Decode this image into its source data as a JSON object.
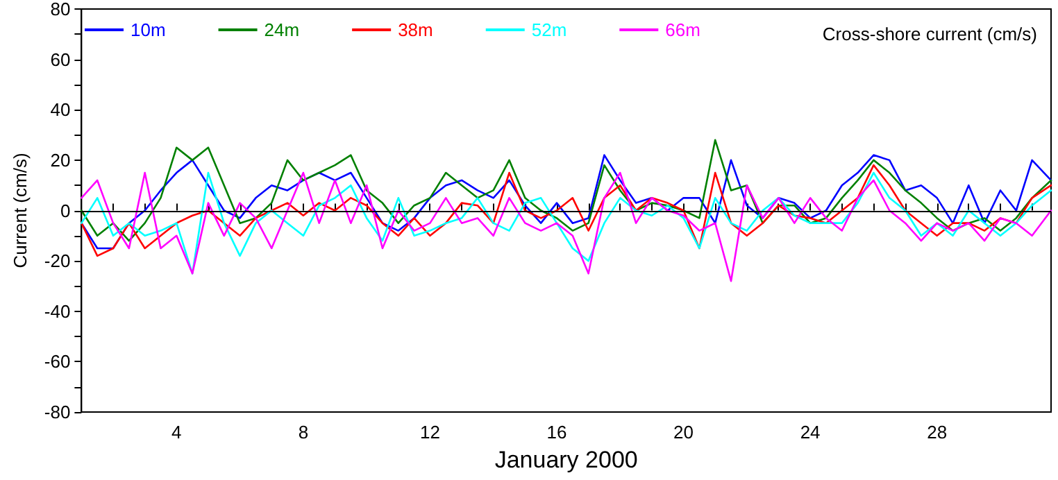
{
  "chart_data": {
    "type": "line",
    "title": "Cross-shore current (cm/s)",
    "xlabel": "January 2000",
    "ylabel": "Current (cm/s)",
    "x": [
      1,
      1.5,
      2,
      2.5,
      3,
      3.5,
      4,
      4.5,
      5,
      5.5,
      6,
      6.5,
      7,
      7.5,
      8,
      8.5,
      9,
      9.5,
      10,
      10.5,
      11,
      11.5,
      12,
      12.5,
      13,
      13.5,
      14,
      14.5,
      15,
      15.5,
      16,
      16.5,
      17,
      17.5,
      18,
      18.5,
      19,
      19.5,
      20,
      20.5,
      21,
      21.5,
      22,
      22.5,
      23,
      23.5,
      24,
      24.5,
      25,
      25.5,
      26,
      26.5,
      27,
      27.5,
      28,
      28.5,
      29,
      29.5,
      30,
      30.5,
      31,
      31.6
    ],
    "series": [
      {
        "name": "10m",
        "color": "#0000ff",
        "values": [
          -5,
          -15,
          -15,
          -5,
          0,
          8,
          15,
          20,
          10,
          0,
          -3,
          5,
          10,
          8,
          12,
          15,
          12,
          15,
          5,
          -5,
          -8,
          -3,
          5,
          10,
          12,
          8,
          5,
          12,
          2,
          -5,
          3,
          -5,
          -3,
          22,
          12,
          3,
          5,
          0,
          5,
          5,
          -5,
          20,
          2,
          -3,
          5,
          3,
          -3,
          0,
          10,
          15,
          22,
          20,
          8,
          10,
          5,
          -5,
          10,
          -5,
          8,
          0,
          20,
          12
        ]
      },
      {
        "name": "24m",
        "color": "#008000",
        "values": [
          0,
          -10,
          -5,
          -12,
          -5,
          5,
          25,
          20,
          25,
          10,
          -5,
          -3,
          3,
          20,
          12,
          15,
          18,
          22,
          8,
          3,
          -5,
          2,
          5,
          15,
          10,
          5,
          8,
          20,
          5,
          0,
          -3,
          -8,
          -5,
          18,
          8,
          0,
          3,
          2,
          0,
          -3,
          28,
          8,
          10,
          -5,
          2,
          2,
          -5,
          -3,
          5,
          12,
          20,
          15,
          8,
          3,
          -3,
          -8,
          -5,
          -3,
          -8,
          -3,
          5,
          12
        ]
      },
      {
        "name": "38m",
        "color": "#ff0000",
        "values": [
          -5,
          -18,
          -15,
          -5,
          -15,
          -10,
          -5,
          -2,
          0,
          -5,
          -10,
          -3,
          0,
          3,
          -2,
          3,
          0,
          5,
          2,
          -5,
          -10,
          -3,
          -10,
          -5,
          3,
          2,
          -5,
          15,
          0,
          -3,
          0,
          5,
          -8,
          5,
          10,
          0,
          5,
          3,
          0,
          -15,
          15,
          -5,
          -10,
          -5,
          2,
          -2,
          -3,
          -5,
          0,
          5,
          18,
          10,
          0,
          -5,
          -10,
          -5,
          -5,
          -8,
          -3,
          -5,
          5,
          10
        ]
      },
      {
        "name": "52m",
        "color": "#00ffff",
        "values": [
          -5,
          5,
          -10,
          -5,
          -10,
          -8,
          -5,
          -25,
          15,
          -5,
          -18,
          -5,
          0,
          -5,
          -10,
          2,
          5,
          10,
          -3,
          -12,
          5,
          -10,
          -8,
          -5,
          -3,
          5,
          -5,
          -8,
          3,
          5,
          -5,
          -15,
          -20,
          -5,
          5,
          0,
          -2,
          2,
          -3,
          -15,
          5,
          -5,
          -8,
          0,
          5,
          -2,
          -5,
          -5,
          -5,
          3,
          15,
          5,
          0,
          -10,
          -5,
          -10,
          0,
          -5,
          -10,
          -5,
          2,
          8
        ]
      },
      {
        "name": "66m",
        "color": "#ff00ff",
        "values": [
          5,
          12,
          -5,
          -15,
          15,
          -15,
          -10,
          -25,
          3,
          -10,
          3,
          -3,
          -15,
          0,
          15,
          -5,
          12,
          -5,
          10,
          -15,
          0,
          -8,
          -5,
          5,
          -5,
          -3,
          -10,
          5,
          -5,
          -8,
          -5,
          -10,
          -25,
          5,
          15,
          -5,
          5,
          0,
          -2,
          -8,
          -5,
          -28,
          10,
          -3,
          5,
          -5,
          5,
          -3,
          -8,
          5,
          12,
          0,
          -5,
          -12,
          -5,
          -8,
          -5,
          -12,
          -3,
          -5,
          -10,
          0
        ]
      }
    ],
    "xlim": [
      1,
      31.6
    ],
    "xticks": [
      {
        "value": 2,
        "label": null
      },
      {
        "value": 3,
        "label": null
      },
      4,
      {
        "value": 5,
        "label": null
      },
      {
        "value": 6,
        "label": null
      },
      {
        "value": 7,
        "label": null
      },
      8,
      {
        "value": 9,
        "label": null
      },
      {
        "value": 10,
        "label": null
      },
      {
        "value": 11,
        "label": null
      },
      12,
      {
        "value": 13,
        "label": null
      },
      {
        "value": 14,
        "label": null
      },
      {
        "value": 15,
        "label": null
      },
      16,
      {
        "value": 17,
        "label": null
      },
      {
        "value": 18,
        "label": null
      },
      {
        "value": 19,
        "label": null
      },
      20,
      {
        "value": 21,
        "label": null
      },
      {
        "value": 22,
        "label": null
      },
      {
        "value": 23,
        "label": null
      },
      24,
      {
        "value": 25,
        "label": null
      },
      {
        "value": 26,
        "label": null
      },
      {
        "value": 27,
        "label": null
      },
      28,
      {
        "value": 29,
        "label": null
      },
      {
        "value": 30,
        "label": null
      },
      {
        "value": 31,
        "label": null
      }
    ],
    "ylim": [
      -80,
      80
    ],
    "yticks": [
      -80,
      {
        "value": -70,
        "label": null
      },
      -60,
      {
        "value": -50,
        "label": null
      },
      -40,
      {
        "value": -30,
        "label": null
      },
      -20,
      {
        "value": -10,
        "label": null
      },
      0,
      {
        "value": 10,
        "label": null
      },
      20,
      {
        "value": 30,
        "label": null
      },
      40,
      {
        "value": 50,
        "label": null
      },
      60,
      {
        "value": 70,
        "label": null
      },
      80
    ],
    "ref_lines": [
      {
        "axis": "y",
        "value": 0,
        "color": "#000000"
      }
    ],
    "legend": "top left",
    "grid": false,
    "marker": "none",
    "line_style": "solid"
  }
}
